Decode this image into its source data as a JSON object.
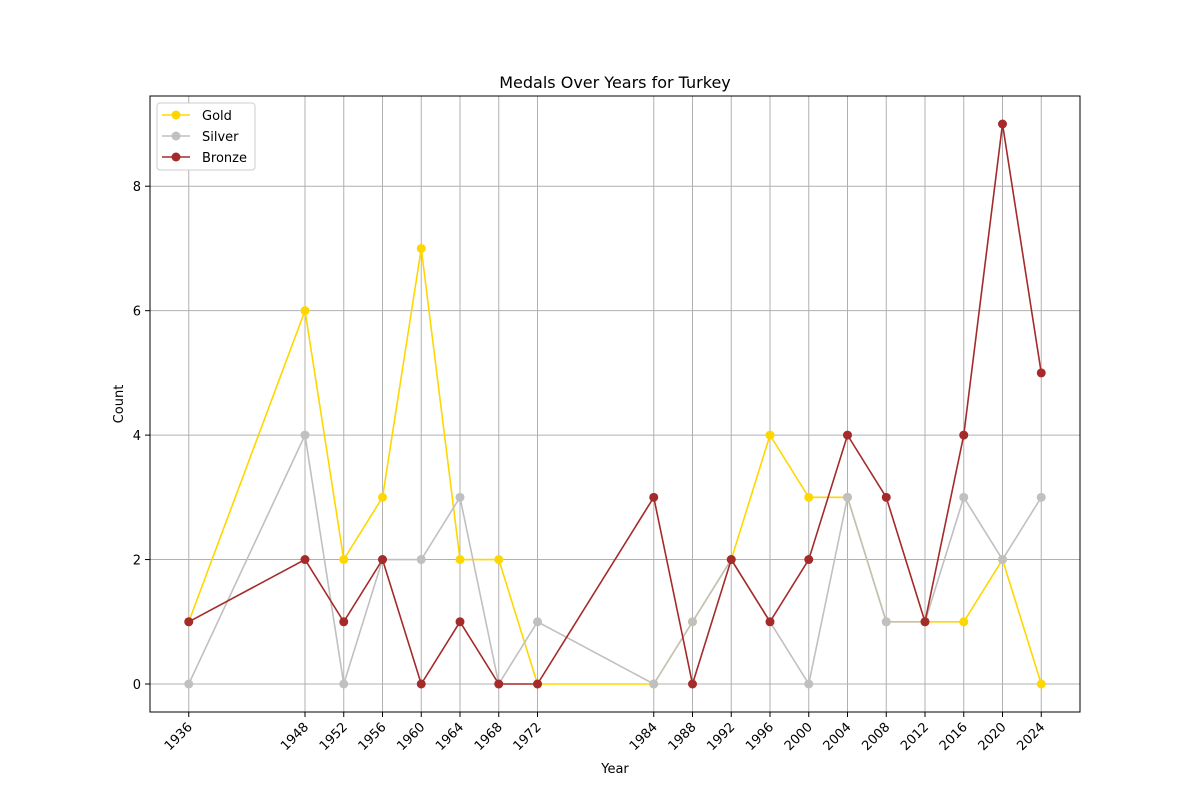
{
  "chart_data": {
    "type": "line",
    "title": "Medals Over Years for Turkey",
    "xlabel": "Year",
    "ylabel": "Count",
    "x": [
      1936,
      1948,
      1952,
      1956,
      1960,
      1964,
      1968,
      1972,
      1984,
      1988,
      1992,
      1996,
      2000,
      2004,
      2008,
      2012,
      2016,
      2020,
      2024
    ],
    "xlim": [
      1932,
      2028
    ],
    "ylim": [
      -0.45,
      9.45
    ],
    "yticks": [
      0,
      2,
      4,
      6,
      8
    ],
    "grid": true,
    "legend_position": "top-left",
    "series": [
      {
        "name": "Gold",
        "color": "#FFD700",
        "values": [
          1,
          6,
          2,
          3,
          7,
          2,
          2,
          0,
          0,
          1,
          2,
          4,
          3,
          3,
          1,
          1,
          1,
          2,
          0
        ]
      },
      {
        "name": "Silver",
        "color": "#C0C0C0",
        "values": [
          0,
          4,
          0,
          2,
          2,
          3,
          0,
          1,
          0,
          1,
          2,
          1,
          0,
          3,
          1,
          1,
          3,
          2,
          3
        ]
      },
      {
        "name": "Bronze",
        "color": "#A52A2A",
        "values": [
          1,
          2,
          1,
          2,
          0,
          1,
          0,
          0,
          3,
          0,
          2,
          1,
          2,
          4,
          3,
          1,
          4,
          9,
          5
        ]
      }
    ]
  }
}
